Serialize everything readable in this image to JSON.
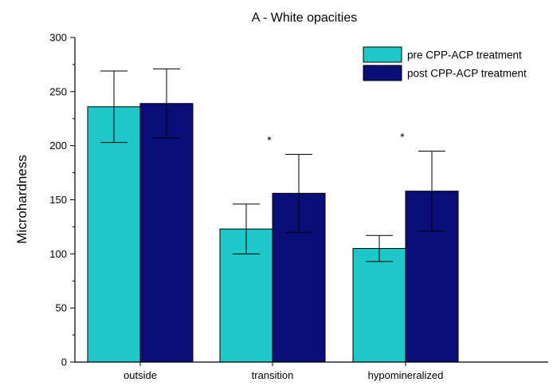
{
  "chart_data": {
    "type": "bar",
    "title": "A - White opacities",
    "xlabel": "",
    "ylabel": "Microhardness",
    "ylim": [
      0,
      300
    ],
    "yticks": [
      0,
      50,
      100,
      150,
      200,
      250,
      300
    ],
    "categories": [
      "outside",
      "transition",
      "hypomineralized"
    ],
    "series": [
      {
        "name": "pre CPP-ACP treatment",
        "color": "#1fc8c8",
        "values": [
          236,
          123,
          105
        ],
        "errors": [
          33,
          23,
          12
        ]
      },
      {
        "name": "post CPP-ACP treatment",
        "color": "#0a0f78",
        "values": [
          239,
          156,
          158
        ],
        "errors": [
          32,
          36,
          37
        ]
      }
    ],
    "annotations": [
      {
        "category": "transition",
        "text": "*"
      },
      {
        "category": "hypomineralized",
        "text": "*"
      }
    ],
    "legend_position": "top-right",
    "grid": false
  }
}
